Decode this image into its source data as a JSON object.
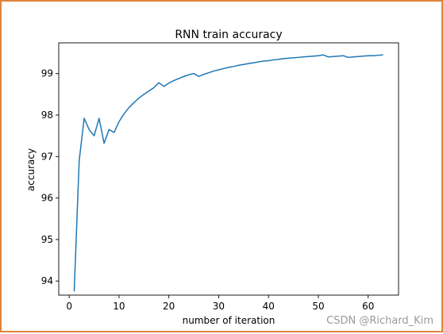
{
  "chart_data": {
    "type": "line",
    "title": "RNN train accuracy",
    "xlabel": "number of iteration",
    "ylabel": "accuracy",
    "xlim": [
      -2.1,
      66.1
    ],
    "ylim": [
      93.66,
      99.74
    ],
    "xticks": [
      0,
      10,
      20,
      30,
      40,
      50,
      60
    ],
    "yticks": [
      94,
      95,
      96,
      97,
      98,
      99
    ],
    "grid": false,
    "legend": "none",
    "series": [
      {
        "color": "#1f77b4",
        "x": [
          1,
          2,
          3,
          4,
          5,
          6,
          7,
          8,
          9,
          10,
          11,
          12,
          13,
          14,
          15,
          16,
          17,
          18,
          19,
          20,
          21,
          22,
          23,
          24,
          25,
          26,
          27,
          28,
          29,
          30,
          31,
          32,
          33,
          34,
          35,
          36,
          37,
          38,
          39,
          40,
          41,
          42,
          43,
          44,
          45,
          46,
          47,
          48,
          49,
          50,
          51,
          52,
          53,
          54,
          55,
          56,
          57,
          58,
          59,
          60,
          61,
          62,
          63
        ],
        "y": [
          93.75,
          96.9,
          97.92,
          97.65,
          97.5,
          97.92,
          97.32,
          97.65,
          97.58,
          97.84,
          98.03,
          98.18,
          98.3,
          98.41,
          98.5,
          98.58,
          98.66,
          98.78,
          98.69,
          98.77,
          98.83,
          98.88,
          98.93,
          98.97,
          99.0,
          98.93,
          98.98,
          99.02,
          99.06,
          99.09,
          99.12,
          99.15,
          99.17,
          99.2,
          99.22,
          99.24,
          99.26,
          99.28,
          99.3,
          99.31,
          99.33,
          99.34,
          99.36,
          99.37,
          99.38,
          99.39,
          99.4,
          99.41,
          99.42,
          99.43,
          99.45,
          99.4,
          99.41,
          99.42,
          99.43,
          99.39,
          99.4,
          99.41,
          99.42,
          99.43,
          99.43,
          99.44,
          99.45
        ]
      }
    ]
  },
  "watermark": "CSDN @Richard_Kim"
}
